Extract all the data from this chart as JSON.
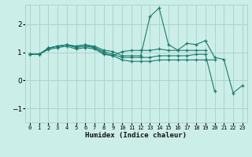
{
  "title": "",
  "xlabel": "Humidex (Indice chaleur)",
  "bg_color": "#cceee8",
  "grid_color": "#aad4cc",
  "line_color": "#1a7a6e",
  "xlim": [
    -0.5,
    23.5
  ],
  "ylim": [
    -1.5,
    2.7
  ],
  "yticks": [
    -1,
    0,
    1,
    2
  ],
  "xticks": [
    0,
    1,
    2,
    3,
    4,
    5,
    6,
    7,
    8,
    9,
    10,
    11,
    12,
    13,
    14,
    15,
    16,
    17,
    18,
    19,
    20,
    21,
    22,
    23
  ],
  "series": [
    [
      0.93,
      0.93,
      1.15,
      1.22,
      1.27,
      1.22,
      1.27,
      1.22,
      1.08,
      1.03,
      0.88,
      0.88,
      0.88,
      2.28,
      2.58,
      1.28,
      1.08,
      1.32,
      1.28,
      1.42,
      0.82,
      0.75,
      -0.45,
      -0.18
    ],
    [
      0.93,
      0.93,
      1.15,
      1.22,
      1.27,
      1.17,
      1.22,
      1.17,
      1.03,
      0.93,
      0.82,
      0.82,
      0.82,
      0.82,
      0.88,
      0.88,
      0.88,
      0.88,
      0.93,
      0.93,
      -0.38,
      null,
      null,
      null
    ],
    [
      0.93,
      0.93,
      1.15,
      1.22,
      1.27,
      1.22,
      1.27,
      1.17,
      0.97,
      0.88,
      1.03,
      1.07,
      1.07,
      1.07,
      1.12,
      1.07,
      1.07,
      1.07,
      1.07,
      1.07,
      null,
      null,
      null,
      null
    ],
    [
      0.93,
      0.93,
      1.1,
      1.17,
      1.22,
      1.12,
      1.17,
      1.12,
      0.93,
      0.88,
      0.73,
      0.68,
      0.68,
      0.68,
      0.73,
      0.73,
      0.73,
      0.73,
      0.73,
      0.73,
      0.73,
      null,
      null,
      null
    ]
  ]
}
